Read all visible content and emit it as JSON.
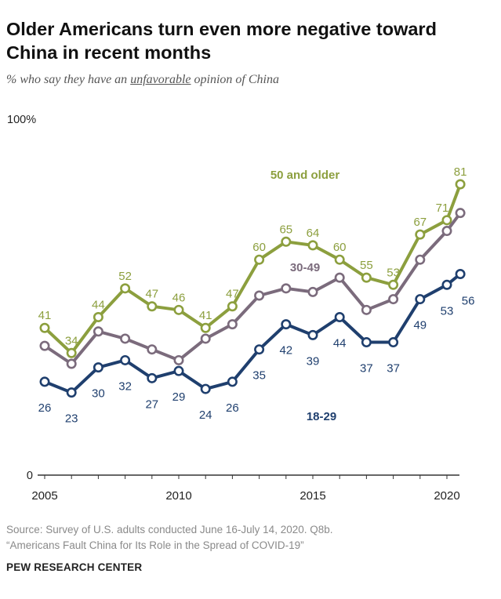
{
  "header": {
    "title": "Older Americans turn even more negative toward China in recent months",
    "subtitle_pre": "% who say they have an ",
    "subtitle_em": "unfavorable",
    "subtitle_post": " opinion of China"
  },
  "footer": {
    "source_line1": "Source: Survey of U.S. adults conducted June 16-July 14, 2020. Q8b.",
    "source_line2": "“Americans Fault China for Its Role in the Spread of COVID-19”",
    "org": "PEW RESEARCH CENTER"
  },
  "chart_data": {
    "type": "line",
    "title": "Older Americans turn even more negative toward China in recent months",
    "ylabel": "% who say they have an unfavorable opinion of China",
    "x": [
      2005,
      2006,
      2007,
      2008,
      2009,
      2010,
      2011,
      2012,
      2013,
      2014,
      2015,
      2016,
      2017,
      2018,
      2019,
      2020,
      2020.5
    ],
    "x_ticks": [
      "2005",
      "2010",
      "2015",
      "2020"
    ],
    "y_ticks": [
      "0",
      "100%"
    ],
    "ylim": [
      0,
      100
    ],
    "series": [
      {
        "name": "50 and older",
        "color": "#8c9f3e",
        "values": [
          41,
          34,
          44,
          52,
          47,
          46,
          41,
          47,
          60,
          65,
          64,
          60,
          55,
          53,
          67,
          71,
          81
        ],
        "labels": [
          "41",
          "34",
          "44",
          "52",
          "47",
          "46",
          "41",
          "47",
          "60",
          "65",
          "64",
          "60",
          "55",
          "53",
          "67",
          "71",
          "81"
        ]
      },
      {
        "name": "30-49",
        "color": "#7b6b7c",
        "values": [
          36,
          31,
          40,
          38,
          35,
          32,
          38,
          42,
          50,
          52,
          51,
          55,
          46,
          49,
          60,
          68,
          73
        ],
        "labels": []
      },
      {
        "name": "18-29",
        "color": "#1f3f6e",
        "values": [
          26,
          23,
          30,
          32,
          27,
          29,
          24,
          26,
          35,
          42,
          39,
          44,
          37,
          37,
          49,
          53,
          56
        ],
        "labels": [
          "26",
          "23",
          "30",
          "32",
          "27",
          "29",
          "24",
          "26",
          "35",
          "42",
          "39",
          "44",
          "37",
          "37",
          "49",
          "53",
          "56"
        ]
      }
    ]
  }
}
